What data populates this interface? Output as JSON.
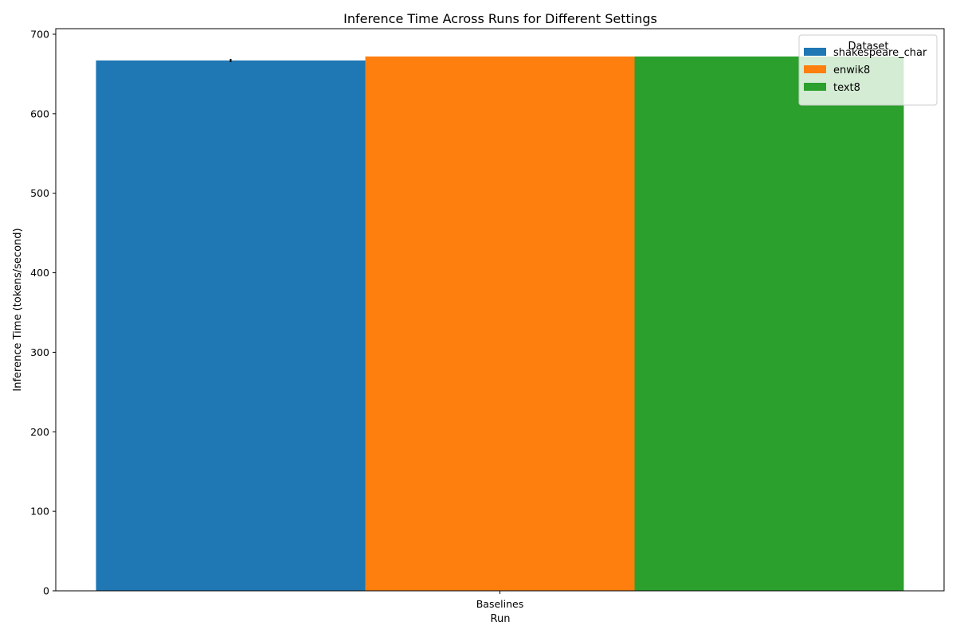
{
  "chart_data": {
    "type": "bar",
    "title": "Inference Time Across Runs for Different Settings",
    "xlabel": "Run",
    "ylabel": "Inference Time (tokens/second)",
    "categories": [
      "Baselines"
    ],
    "ylim": [
      0,
      707
    ],
    "yticks": [
      0,
      100,
      200,
      300,
      400,
      500,
      600,
      700
    ],
    "grid": false,
    "legend": {
      "title": "Dataset",
      "placement": "top-right"
    },
    "series": [
      {
        "name": "shakespeare_char",
        "values": [
          667
        ],
        "error": [
          2
        ],
        "color": "#1f77b4"
      },
      {
        "name": "enwik8",
        "values": [
          672
        ],
        "color": "#ff7f0e"
      },
      {
        "name": "text8",
        "values": [
          672
        ],
        "color": "#2ca02c"
      }
    ]
  }
}
